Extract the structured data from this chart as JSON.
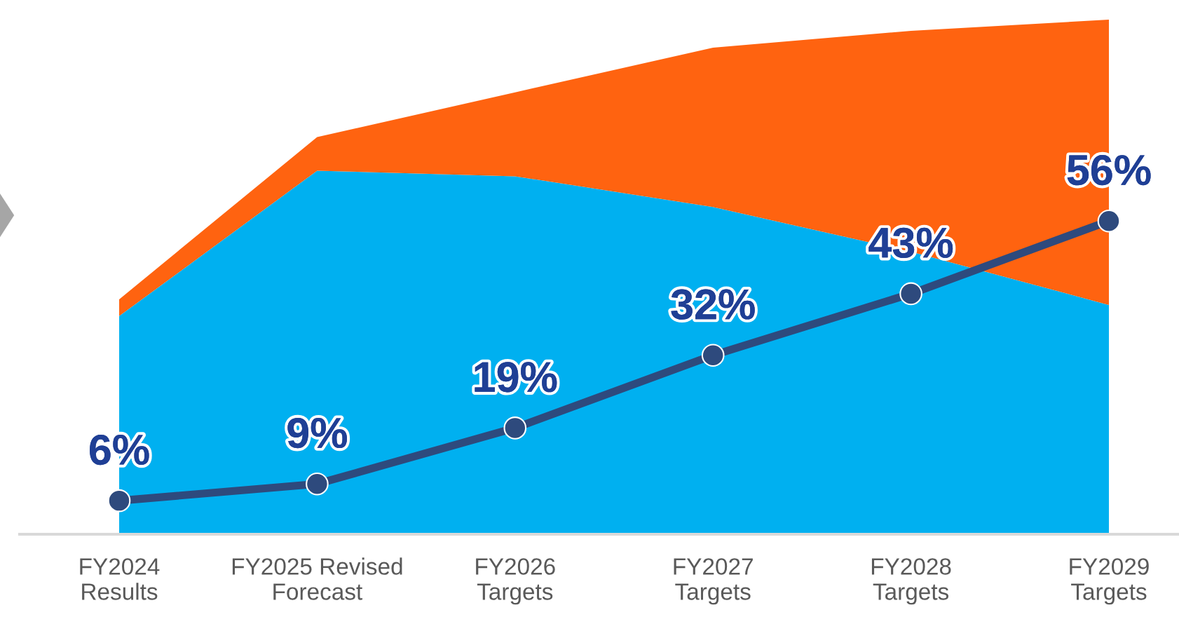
{
  "chart_data": {
    "type": "area",
    "stacked": true,
    "grid": false,
    "tick_labels": "x",
    "categories": [
      "FY2024\nResults",
      "FY2025 Revised\nForecast",
      "FY2026\nTargets",
      "FY2027\nTargets",
      "FY2028\nTargets",
      "FY2029\nTargets"
    ],
    "series": [
      {
        "color": "#00b0f0",
        "values": [
          39,
          65,
          64,
          58.5,
          50.5,
          41
        ]
      },
      {
        "color": "#ff6310",
        "values": [
          3,
          6,
          15,
          28.5,
          39.5,
          51
        ]
      },
      {
        "type": "line",
        "color": "#2e4a7d",
        "marker": "circle",
        "values": [
          6,
          9,
          19,
          32,
          43,
          56
        ],
        "value_labels": [
          "6%",
          "9%",
          "19%",
          "32%",
          "43%",
          "56%"
        ]
      }
    ]
  }
}
